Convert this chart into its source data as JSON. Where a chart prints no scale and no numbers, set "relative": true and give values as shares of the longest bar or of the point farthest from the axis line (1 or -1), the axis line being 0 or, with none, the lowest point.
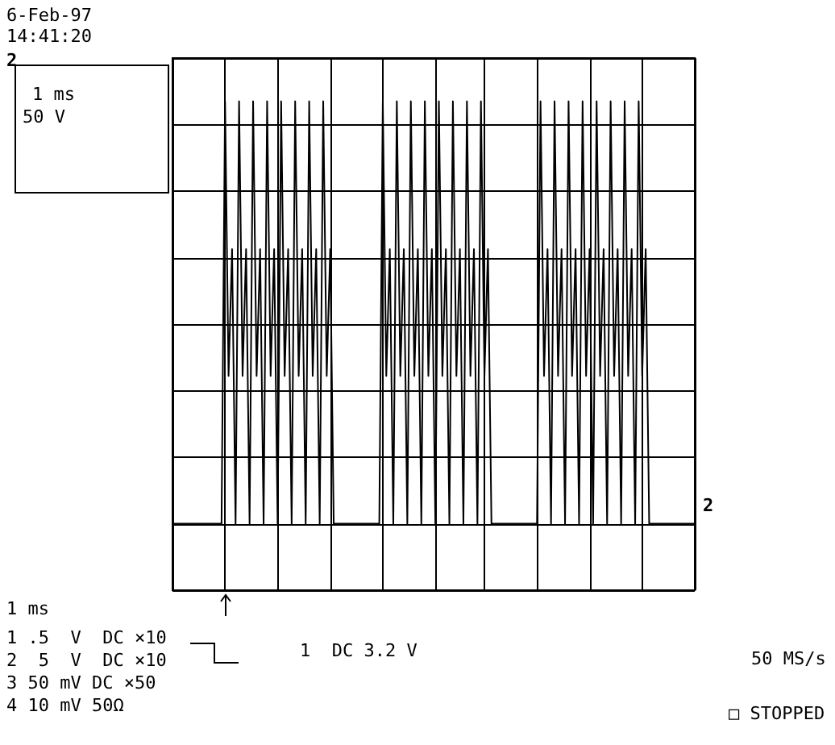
{
  "chart_data": {
    "type": "line",
    "relative": true,
    "grid": true,
    "line_style": "solid",
    "categories": [
      null,
      null,
      null,
      null,
      null,
      null,
      null,
      null,
      null,
      null,
      null,
      null,
      null,
      null,
      null,
      null,
      null,
      null,
      null,
      null,
      null,
      null,
      null,
      null,
      null,
      null,
      null,
      null,
      null,
      null,
      null,
      null,
      null,
      null,
      null,
      null,
      null,
      null,
      null,
      null,
      null,
      null,
      null,
      null,
      null,
      null,
      null,
      null,
      null,
      null,
      null,
      null,
      null,
      null,
      null,
      null,
      null,
      null,
      null,
      null,
      null,
      null,
      null,
      null,
      null,
      null,
      null,
      null,
      null,
      null,
      null,
      null,
      null,
      null,
      null,
      null,
      null,
      null,
      null,
      null,
      null,
      null,
      null,
      null,
      null,
      null,
      null,
      null,
      null,
      null,
      null,
      null,
      null,
      null,
      null,
      null,
      null,
      null,
      null,
      null,
      null,
      null,
      null,
      null,
      null,
      null,
      null,
      null,
      null,
      null,
      null,
      null,
      null,
      null,
      null,
      null,
      null,
      null,
      null,
      null,
      null,
      null,
      null,
      null,
      null,
      null,
      null,
      null,
      null,
      null,
      null,
      null,
      null,
      null,
      null,
      null,
      null,
      null,
      null,
      null,
      null,
      null,
      null,
      null,
      null,
      null,
      null,
      null,
      null,
      null
    ],
    "series": [
      {
        "color": "#000000",
        "values": [
          0,
          0,
          0,
          0,
          0,
          0,
          0,
          0,
          0,
          0,
          0,
          0,
          0,
          0,
          0,
          1,
          0.35,
          0.65,
          0,
          1,
          0.35,
          0.65,
          0,
          1,
          0.35,
          0.65,
          0,
          1,
          0.35,
          0.65,
          0,
          1,
          0.35,
          0.65,
          0,
          1,
          0.35,
          0.65,
          0,
          1,
          0.35,
          0.65,
          0,
          1,
          0.35,
          0.65,
          0,
          0,
          0,
          0,
          0,
          0,
          0,
          0,
          0,
          0,
          0,
          0,
          0,
          0,
          1,
          0.35,
          0.65,
          0,
          1,
          0.35,
          0.65,
          0,
          1,
          0.35,
          0.65,
          0,
          1,
          0.35,
          0.65,
          0,
          1,
          0.35,
          0.65,
          0,
          1,
          0.35,
          0.65,
          0,
          1,
          0.35,
          0.65,
          0,
          1,
          0.35,
          0.65,
          0,
          0,
          0,
          0,
          0,
          0,
          0,
          0,
          0,
          0,
          0,
          0,
          0,
          0,
          1,
          0.35,
          0.65,
          0,
          1,
          0.35,
          0.65,
          0,
          1,
          0.35,
          0.65,
          0,
          1,
          0.35,
          0.65,
          0,
          1,
          0.35,
          0.65,
          0,
          1,
          0.35,
          0.65,
          0,
          1,
          0.35,
          0.65,
          0,
          1,
          0.35,
          0.65,
          0,
          0,
          0,
          0,
          0,
          0,
          0,
          0,
          0,
          0,
          0,
          0,
          0,
          0
        ]
      }
    ],
    "annotations": [
      "6-Feb-97",
      "14:41:20",
      "2",
      "1 ms",
      "50 V",
      "2",
      "1 ms",
      "1 .5  V  DC ×10",
      "2  5  V  DC ×10",
      "3 50 mV DC ×50",
      "4 10 mV 50Ω",
      "1  DC 3.2 V",
      "50 MS/s",
      "□ STOPPED"
    ]
  }
}
